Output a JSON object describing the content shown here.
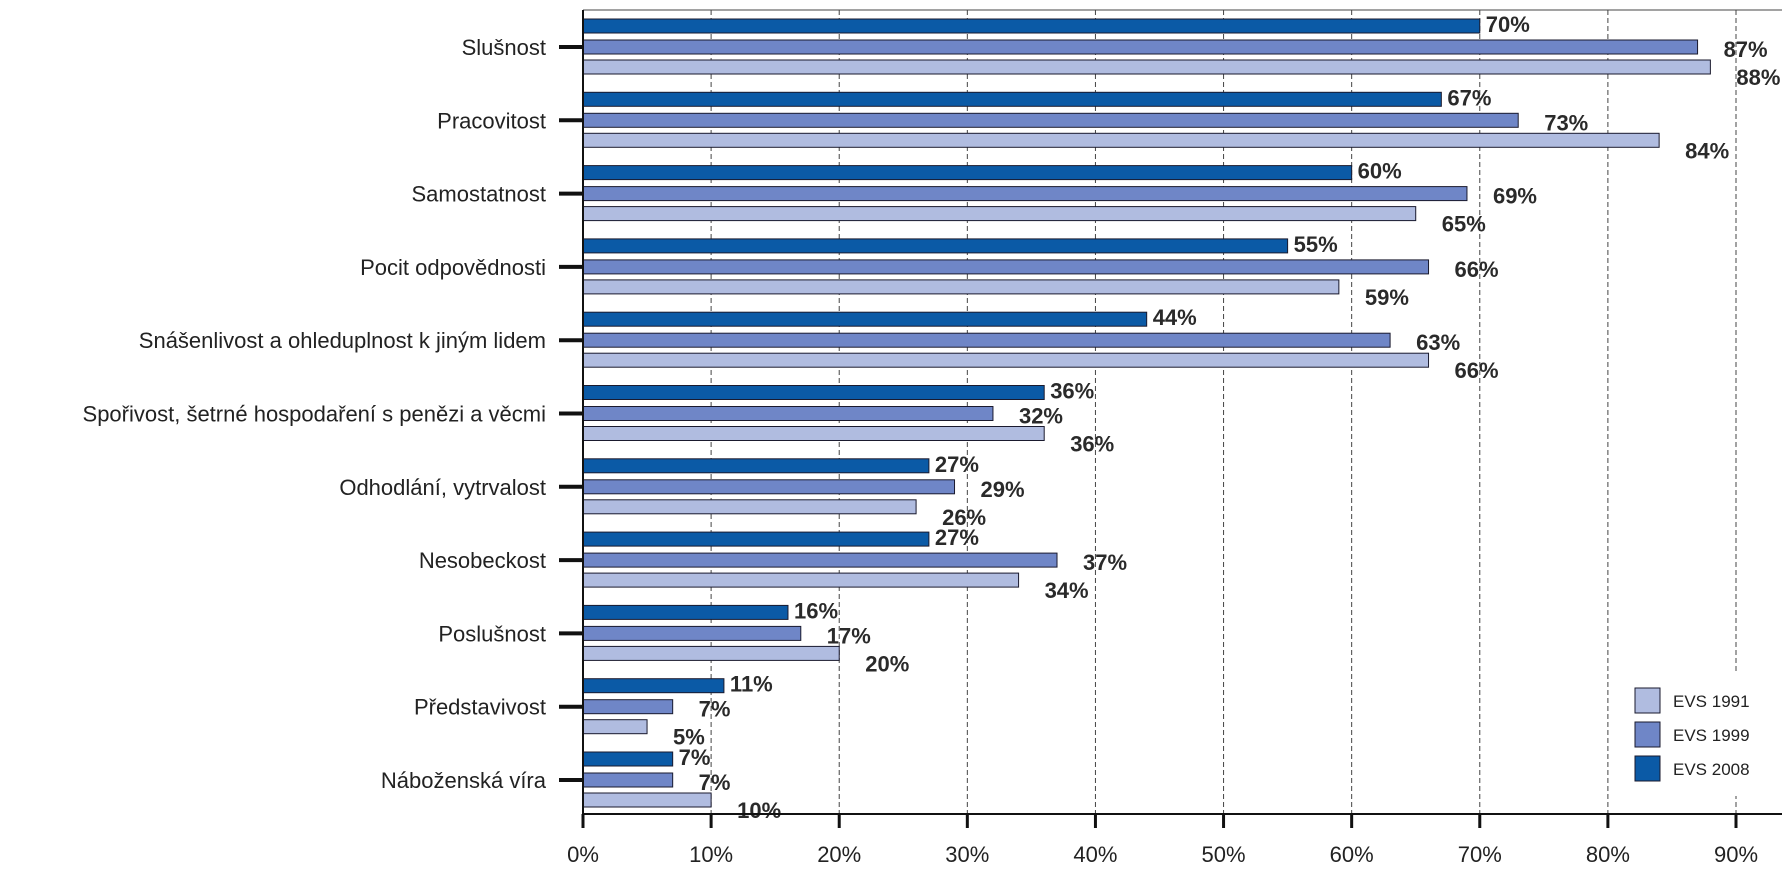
{
  "chart_data": {
    "type": "bar",
    "orientation": "horizontal",
    "categories": [
      "Slušnost",
      "Pracovitost",
      "Samostatnost",
      "Pocit odpovědnosti",
      "Snášenlivost a ohleduplnost k jiným lidem",
      "Spořivost, šetrné hospodaření s penězi a věcmi",
      "Odhodlání, vytrvalost",
      "Nesobeckost",
      "Poslušnost",
      "Představivost",
      "Náboženská víra"
    ],
    "series": [
      {
        "name": "EVS 2008",
        "color": "#0b5aa6",
        "values": [
          70,
          67,
          60,
          55,
          44,
          36,
          27,
          27,
          16,
          11,
          7
        ],
        "labels": [
          "70%",
          "67%",
          "60%",
          "55%",
          "44%",
          "36%",
          "27%",
          "27%",
          "16%",
          "11%",
          "7%"
        ]
      },
      {
        "name": "EVS 1999",
        "color": "#6f86c7",
        "values": [
          87,
          73,
          69,
          66,
          63,
          32,
          29,
          37,
          17,
          7,
          7
        ],
        "labels": [
          "87%",
          "73%",
          "69%",
          "66%",
          "63%",
          "32%",
          "29%",
          "37%",
          "17%",
          "7%",
          "7%"
        ]
      },
      {
        "name": "EVS 1991",
        "color": "#b0bce0",
        "values": [
          88,
          84,
          65,
          59,
          66,
          36,
          26,
          34,
          20,
          5,
          10
        ],
        "labels": [
          "88%",
          "84%",
          "65%",
          "59%",
          "66%",
          "36%",
          "26%",
          "34%",
          "20%",
          "5%",
          "10%"
        ]
      }
    ],
    "xlim": [
      0,
      90
    ],
    "xticks": [
      0,
      10,
      20,
      30,
      40,
      50,
      60,
      70,
      80,
      90
    ],
    "xtick_labels": [
      "0%",
      "10%",
      "20%",
      "30%",
      "40%",
      "50%",
      "60%",
      "70%",
      "80%",
      "90%"
    ],
    "grid": "vertical dashed",
    "legend": {
      "position": "bottom-right",
      "entries": [
        {
          "label": "EVS 1991",
          "color": "#b0bce0"
        },
        {
          "label": "EVS 1999",
          "color": "#6f86c7"
        },
        {
          "label": "EVS 2008",
          "color": "#0b5aa6"
        }
      ]
    }
  }
}
